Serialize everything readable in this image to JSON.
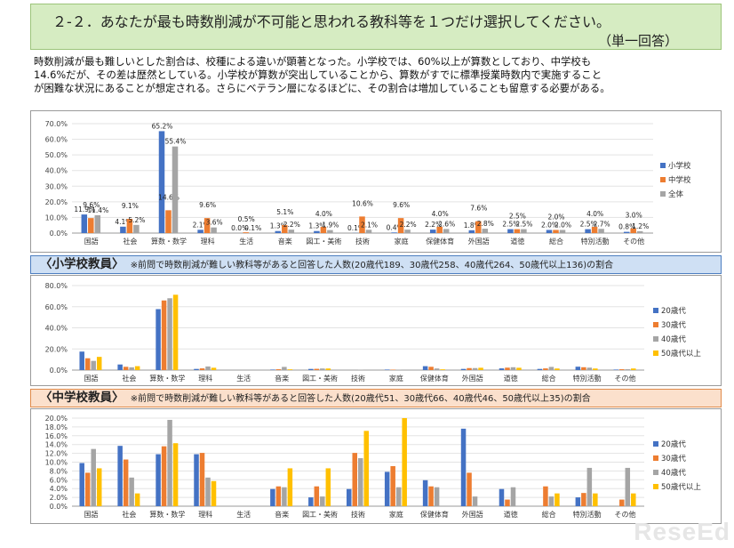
{
  "header": {
    "question": "２-２．あなたが最も時数削減が不可能と思われる教科等を１つだけ選択してください。",
    "sub": "（単一回答）"
  },
  "summary": [
    "時数削減が最も難しいとした割合は、校種による違いが顕著となった。小学校では、60%以上が算数としており、中学校も",
    "14.6%だが、その差は歴然としている。小学校が算数が突出していることから、算数がすでに標準授業時数内で実施すること",
    "が困難な状況にあることが想定される。さらにベテラン層になるほどに、その割合は増加していることも留意する必要がある。"
  ],
  "section_elem": {
    "label": "〈小学校教員〉",
    "note": "※前問で時数削減が難しい教科等があると回答した人数(20歳代189、30歳代258、40歳代264、50歳代以上136)の割合"
  },
  "section_junior": {
    "label": "〈中学校教員〉",
    "note": "※前問で時数削減が難しい教科等があると回答した人数(20歳代51、30歳代66、40歳代46、50歳代以上35)の割合"
  },
  "watermark": "ReseEd",
  "colors": {
    "blue": "#4472c4",
    "orange": "#ed7d31",
    "gray": "#a5a5a5",
    "yellow": "#ffc000"
  },
  "chart_data": [
    {
      "type": "bar",
      "categories": [
        "国語",
        "社会",
        "算数・数学",
        "理科",
        "生活",
        "音楽",
        "図工・美術",
        "技術",
        "家庭",
        "保健体育",
        "外国語",
        "道徳",
        "総合",
        "特別活動",
        "その他"
      ],
      "ylim": [
        0,
        70
      ],
      "yticks": [
        "0.0%",
        "10.0%",
        "20.0%",
        "30.0%",
        "40.0%",
        "50.0%",
        "60.0%",
        "70.0%"
      ],
      "legend_position": "right",
      "series": [
        {
          "name": "小学校",
          "color": "#4472c4",
          "values": [
            11.9,
            4.1,
            65.2,
            2.1,
            0.0,
            1.3,
            1.3,
            0.1,
            0.4,
            2.2,
            1.8,
            2.5,
            2.0,
            2.5,
            0.8
          ],
          "labels": [
            "11.9%",
            "4.1%",
            "65.2%",
            "2.1%",
            "0.0%",
            "1.3%",
            "1.3%",
            "0.1%",
            "0.4%",
            "2.2%",
            "1.8%",
            "2.5%",
            "2.0%",
            "2.5%",
            "0.8%"
          ]
        },
        {
          "name": "中学校",
          "color": "#ed7d31",
          "values": [
            9.6,
            9.1,
            14.6,
            9.6,
            0.5,
            5.1,
            4.0,
            10.6,
            9.6,
            4.0,
            7.6,
            2.5,
            2.0,
            4.0,
            3.0
          ],
          "labels": [
            "9.6%",
            "9.1%",
            "14.6%",
            "9.6%",
            "0.5%",
            "5.1%",
            "4.0%",
            "10.6%",
            "9.6%",
            "4.0%",
            "7.6%",
            "2.5%",
            "2.0%",
            "4.0%",
            "3.0%"
          ]
        },
        {
          "name": "全体",
          "color": "#a5a5a5",
          "values": [
            11.4,
            5.2,
            55.4,
            3.6,
            0.1,
            2.2,
            1.9,
            2.1,
            2.2,
            2.6,
            2.8,
            2.5,
            2.0,
            2.7,
            1.2
          ],
          "labels": [
            "11.4%",
            "5.2%",
            "55.4%",
            "3.6%",
            "0.1%",
            "2.2%",
            "1.9%",
            "2.1%",
            "2.2%",
            "2.6%",
            "2.8%",
            "2.5%",
            "2.0%",
            "2.7%",
            "1.2%"
          ]
        }
      ]
    },
    {
      "type": "bar",
      "categories": [
        "国語",
        "社会",
        "算数・数学",
        "理科",
        "生活",
        "音楽",
        "図工・美術",
        "技術",
        "家庭",
        "保健体育",
        "外国語",
        "道徳",
        "総合",
        "特別活動",
        "その他"
      ],
      "ylim": [
        0,
        80
      ],
      "yticks": [
        "0.0%",
        "20.0%",
        "40.0%",
        "60.0%",
        "80.0%"
      ],
      "legend_position": "right",
      "series": [
        {
          "name": "20歳代",
          "color": "#4472c4",
          "values": [
            17.5,
            5.3,
            57.7,
            1.1,
            0,
            0.5,
            1.1,
            0,
            0.5,
            3.7,
            1.1,
            1.6,
            1.1,
            3.2,
            0.5
          ]
        },
        {
          "name": "30歳代",
          "color": "#ed7d31",
          "values": [
            11.2,
            3.1,
            65.9,
            1.6,
            0,
            0.8,
            1.2,
            0,
            0.4,
            3.1,
            1.9,
            2.3,
            1.6,
            2.7,
            0.8
          ]
        },
        {
          "name": "40歳代",
          "color": "#a5a5a5",
          "values": [
            8.7,
            2.6,
            68.0,
            3.4,
            0,
            3.0,
            1.5,
            0.4,
            0.4,
            1.5,
            1.9,
            2.7,
            3.0,
            2.3,
            0.8
          ]
        },
        {
          "name": "50歳代以上",
          "color": "#ffc000",
          "values": [
            12.5,
            3.7,
            71.3,
            2.2,
            0,
            0.7,
            1.5,
            0,
            0,
            0.7,
            2.2,
            2.2,
            1.5,
            1.5,
            1.5
          ]
        }
      ]
    },
    {
      "type": "bar",
      "categories": [
        "国語",
        "社会",
        "算数・数学",
        "理科",
        "生活",
        "音楽",
        "図工・美術",
        "技術",
        "家庭",
        "保健体育",
        "外国語",
        "道徳",
        "総合",
        "特別活動",
        "その他"
      ],
      "ylim": [
        0,
        20
      ],
      "yticks": [
        "0.0%",
        "2.0%",
        "4.0%",
        "6.0%",
        "8.0%",
        "10.0%",
        "12.0%",
        "14.0%",
        "16.0%",
        "18.0%",
        "20.0%"
      ],
      "legend_position": "right",
      "series": [
        {
          "name": "20歳代",
          "color": "#4472c4",
          "values": [
            9.8,
            13.7,
            11.8,
            11.8,
            0,
            3.9,
            2.0,
            3.9,
            7.8,
            5.9,
            17.6,
            3.9,
            0,
            2.0,
            0
          ]
        },
        {
          "name": "30歳代",
          "color": "#ed7d31",
          "values": [
            7.6,
            10.6,
            13.6,
            12.1,
            0,
            4.5,
            4.5,
            12.1,
            9.1,
            4.5,
            7.6,
            1.5,
            4.5,
            3.0,
            1.5
          ]
        },
        {
          "name": "40歳代",
          "color": "#a5a5a5",
          "values": [
            13.0,
            6.5,
            19.6,
            6.5,
            0,
            4.3,
            2.2,
            10.9,
            4.3,
            4.3,
            2.2,
            4.3,
            2.2,
            8.7,
            8.7
          ]
        },
        {
          "name": "50歳代以上",
          "color": "#ffc000",
          "values": [
            8.6,
            2.9,
            14.3,
            5.7,
            0,
            8.6,
            8.6,
            17.1,
            20.0,
            0,
            0,
            0,
            2.9,
            2.9,
            2.9
          ]
        }
      ]
    }
  ]
}
